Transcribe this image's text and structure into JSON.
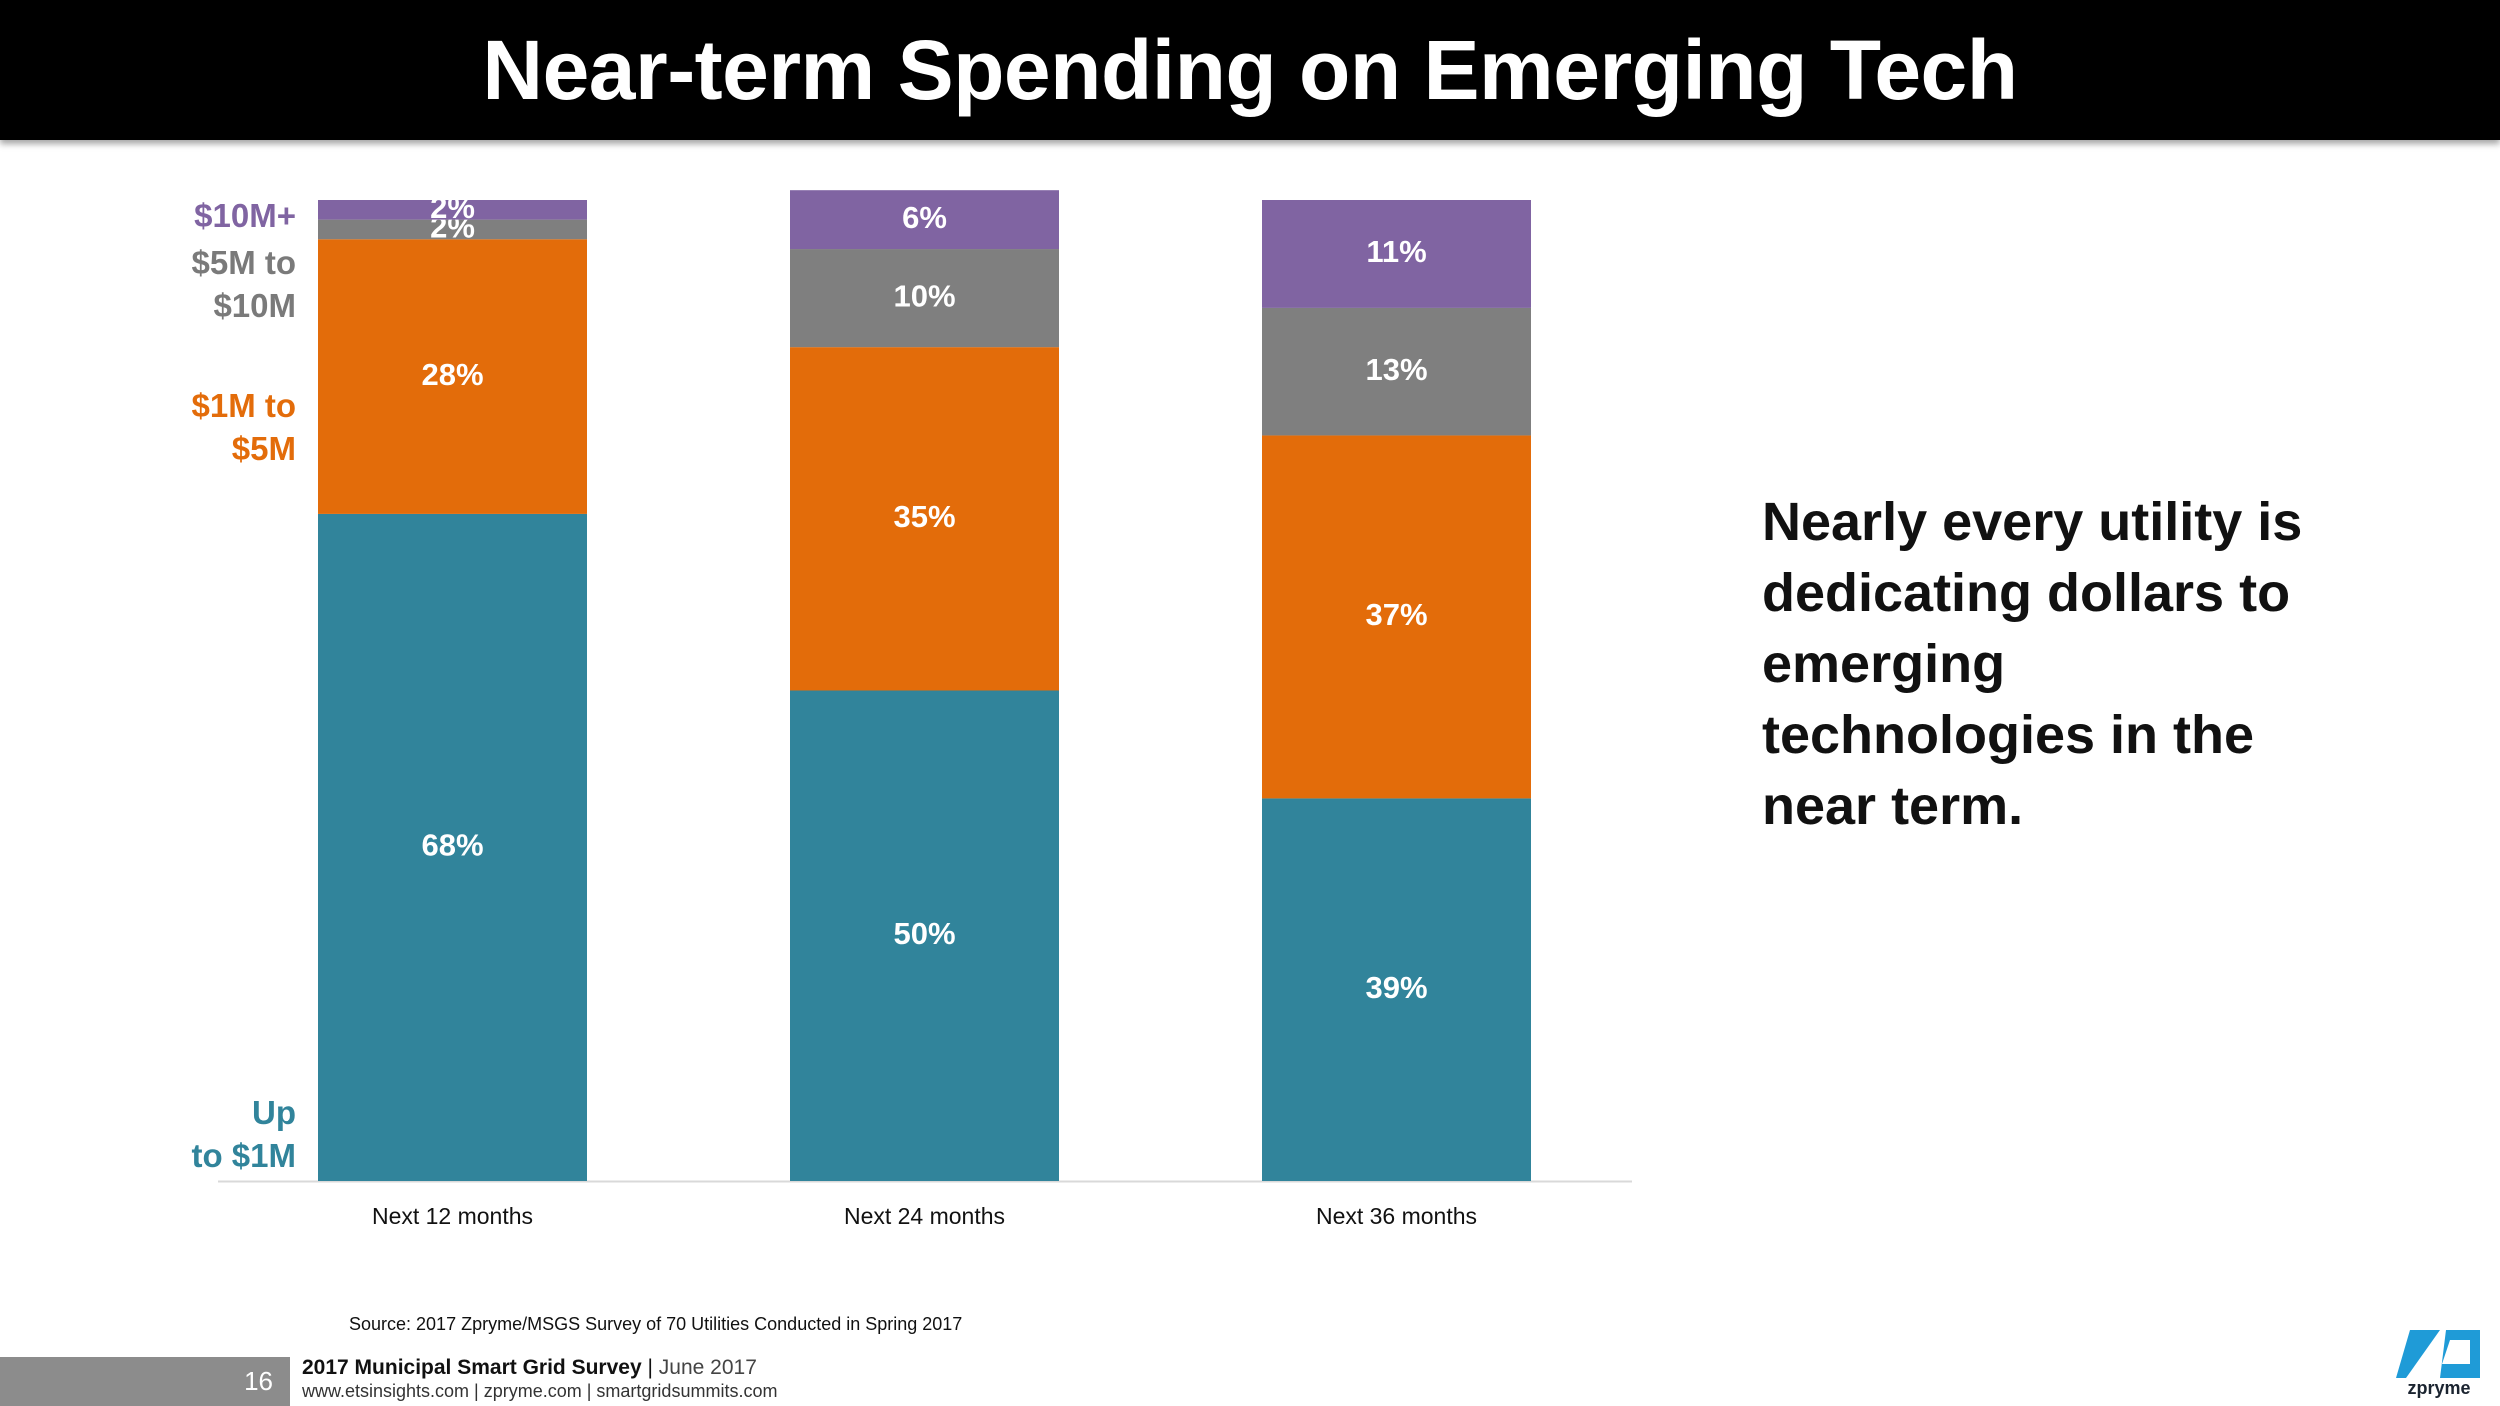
{
  "title": "Near-term Spending on Emerging Tech",
  "chart_data": {
    "type": "bar",
    "stacked": true,
    "normalized": true,
    "categories": [
      "Next 12 months",
      "Next 24 months",
      "Next 36 months"
    ],
    "series": [
      {
        "name": "Up to $1M",
        "label_lines": [
          "Up",
          "to $1M"
        ],
        "color": "#31849b",
        "values": [
          68,
          50,
          39
        ],
        "labels": [
          "68%",
          "50%",
          "39%"
        ]
      },
      {
        "name": "$1M to $5M",
        "label_lines": [
          "$1M to",
          "$5M"
        ],
        "color": "#e36c0a",
        "values": [
          28,
          35,
          37
        ],
        "labels": [
          "28%",
          "35%",
          "37%"
        ]
      },
      {
        "name": "$5M to $10M",
        "label_lines": [
          "$5M to",
          "$10M"
        ],
        "color": "#7f7f7f",
        "values": [
          2,
          10,
          13
        ],
        "labels": [
          "2%",
          "10%",
          "13%"
        ]
      },
      {
        "name": "$10M+",
        "label_lines": [
          "$10M+"
        ],
        "color": "#8064a2",
        "values": [
          2,
          6,
          11
        ],
        "labels": [
          "2%",
          "6%",
          "11%"
        ]
      }
    ],
    "ylim": [
      0,
      100
    ],
    "xlabel": "",
    "ylabel": ""
  },
  "callout": "Nearly every utility is dedicating dollars to emerging technologies in the near term.",
  "source": "Source: 2017 Zpryme/MSGS Survey of 70 Utilities Conducted in Spring 2017",
  "footer": {
    "page_number": "16",
    "survey": "2017 Municipal Smart Grid Survey",
    "separator": "|",
    "date": "June 2017",
    "links": "www.etsinsights.com | zpryme.com | smartgridsummits.com"
  },
  "logo": {
    "text": "zpryme",
    "colors": {
      "blue": "#1f9bd7",
      "navy": "#1b2430"
    }
  }
}
